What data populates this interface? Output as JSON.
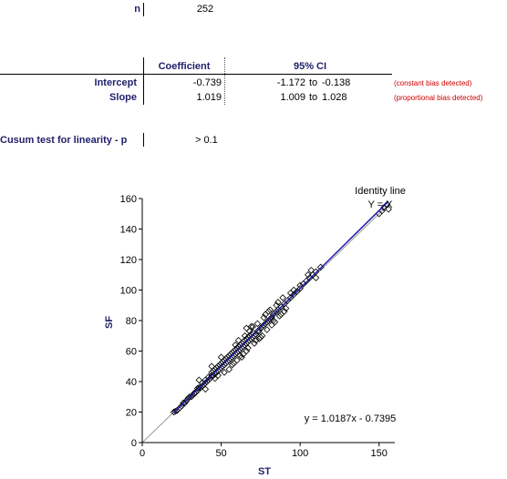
{
  "stats": {
    "n_label": "n",
    "n_value": "252",
    "col_coefficient": "Coefficient",
    "col_ci": "95% CI",
    "rows": [
      {
        "label": "Intercept",
        "coef": "-0.739",
        "ci_low": "-1.172",
        "ci_to": "to",
        "ci_high": "-0.138",
        "note": "(constant bias detected)"
      },
      {
        "label": "Slope",
        "coef": "1.019",
        "ci_low": "1.009",
        "ci_to": "to",
        "ci_high": "1.028",
        "note": "(proportional bias detected)"
      }
    ],
    "cusum_label": "Cusum test for linearity - p",
    "cusum_value": "> 0.1"
  },
  "colors": {
    "label_navy": "#1f1f6b",
    "note_red": "#cc0000",
    "regression_blue": "#1a1aa8",
    "identity_gray": "#9a9a9a"
  },
  "chart_data": {
    "type": "scatter",
    "xlabel": "ST",
    "ylabel": "SF",
    "xlim": [
      0,
      160
    ],
    "ylim": [
      0,
      160
    ],
    "xticks": [
      0,
      50,
      100,
      150
    ],
    "yticks": [
      0,
      20,
      40,
      60,
      80,
      100,
      120,
      140,
      160
    ],
    "grid": false,
    "identity_label": "Identity line",
    "identity_eq": "Y = X",
    "equation": "y = 1.0187x - 0.7395",
    "regression": {
      "slope": 1.0187,
      "intercept": -0.7395
    },
    "points": [
      [
        20,
        20
      ],
      [
        21,
        20.5
      ],
      [
        22,
        21
      ],
      [
        24,
        23
      ],
      [
        25,
        24
      ],
      [
        26,
        26
      ],
      [
        27,
        26
      ],
      [
        28,
        27.5
      ],
      [
        29,
        29
      ],
      [
        30,
        30
      ],
      [
        31,
        30
      ],
      [
        32,
        31
      ],
      [
        33,
        32.5
      ],
      [
        34,
        33
      ],
      [
        35,
        34
      ],
      [
        35,
        35.5
      ],
      [
        36,
        36
      ],
      [
        37,
        36
      ],
      [
        38,
        37
      ],
      [
        38,
        39
      ],
      [
        39,
        38
      ],
      [
        40,
        39
      ],
      [
        40,
        41
      ],
      [
        41,
        40
      ],
      [
        42,
        41
      ],
      [
        42,
        43
      ],
      [
        43,
        42
      ],
      [
        44,
        44
      ],
      [
        44,
        46
      ],
      [
        45,
        44
      ],
      [
        45,
        47
      ],
      [
        46,
        45
      ],
      [
        46,
        48
      ],
      [
        47,
        46
      ],
      [
        47,
        49
      ],
      [
        48,
        47
      ],
      [
        48,
        50
      ],
      [
        49,
        48
      ],
      [
        49,
        51
      ],
      [
        50,
        49
      ],
      [
        50,
        52
      ],
      [
        51,
        50
      ],
      [
        51,
        53
      ],
      [
        52,
        51
      ],
      [
        52,
        54
      ],
      [
        53,
        52
      ],
      [
        53,
        55
      ],
      [
        54,
        53
      ],
      [
        54,
        56
      ],
      [
        55,
        54
      ],
      [
        55,
        57
      ],
      [
        56,
        55
      ],
      [
        56,
        58
      ],
      [
        57,
        56
      ],
      [
        57,
        59
      ],
      [
        58,
        57
      ],
      [
        58,
        60
      ],
      [
        59,
        58
      ],
      [
        59,
        61
      ],
      [
        60,
        59
      ],
      [
        60,
        62
      ],
      [
        61,
        60
      ],
      [
        61,
        63
      ],
      [
        62,
        61
      ],
      [
        62,
        64
      ],
      [
        63,
        62
      ],
      [
        63,
        65
      ],
      [
        64,
        63
      ],
      [
        64,
        66
      ],
      [
        65,
        64
      ],
      [
        65,
        67
      ],
      [
        66,
        65
      ],
      [
        66,
        68
      ],
      [
        67,
        66
      ],
      [
        67,
        69
      ],
      [
        68,
        67
      ],
      [
        68,
        70
      ],
      [
        69,
        68
      ],
      [
        69,
        71
      ],
      [
        70,
        69
      ],
      [
        70,
        72
      ],
      [
        71,
        70
      ],
      [
        72,
        71
      ],
      [
        73,
        73
      ],
      [
        74,
        73
      ],
      [
        75,
        75
      ],
      [
        76,
        76
      ],
      [
        77,
        77
      ],
      [
        78,
        78
      ],
      [
        79,
        79
      ],
      [
        80,
        80
      ],
      [
        81,
        81
      ],
      [
        82,
        82
      ],
      [
        83,
        84
      ],
      [
        84,
        85
      ],
      [
        85,
        86
      ],
      [
        86,
        87
      ],
      [
        88,
        89
      ],
      [
        90,
        91
      ],
      [
        92,
        93
      ],
      [
        94,
        95
      ],
      [
        96,
        97
      ],
      [
        98,
        99
      ],
      [
        100,
        101
      ],
      [
        102,
        104
      ],
      [
        104,
        106
      ],
      [
        106,
        108
      ],
      [
        108,
        110
      ],
      [
        110,
        112
      ],
      [
        113,
        115
      ],
      [
        48,
        44
      ],
      [
        55,
        48
      ],
      [
        58,
        52
      ],
      [
        60,
        54
      ],
      [
        62,
        57
      ],
      [
        64,
        58
      ],
      [
        66,
        60
      ],
      [
        66,
        75
      ],
      [
        68,
        73
      ],
      [
        70,
        76
      ],
      [
        72,
        67
      ],
      [
        74,
        68
      ],
      [
        76,
        70
      ],
      [
        78,
        84
      ],
      [
        80,
        86
      ],
      [
        82,
        77
      ],
      [
        84,
        79
      ],
      [
        86,
        92
      ],
      [
        88,
        84
      ],
      [
        90,
        86
      ],
      [
        94,
        98
      ],
      [
        96,
        100
      ],
      [
        100,
        103
      ],
      [
        105,
        110
      ],
      [
        107,
        113
      ],
      [
        110,
        108
      ],
      [
        36,
        41
      ],
      [
        40,
        35
      ],
      [
        44,
        50
      ],
      [
        46,
        42
      ],
      [
        52,
        46
      ],
      [
        50,
        56
      ],
      [
        57,
        51
      ],
      [
        59,
        64
      ],
      [
        61,
        67
      ],
      [
        63,
        56
      ],
      [
        65,
        70
      ],
      [
        67,
        62
      ],
      [
        69,
        76
      ],
      [
        71,
        65
      ],
      [
        73,
        78
      ],
      [
        75,
        69
      ],
      [
        77,
        82
      ],
      [
        79,
        74
      ],
      [
        81,
        87
      ],
      [
        83,
        80
      ],
      [
        85,
        90
      ],
      [
        87,
        83
      ],
      [
        89,
        95
      ],
      [
        91,
        88
      ],
      [
        150,
        150
      ],
      [
        152,
        152
      ],
      [
        153,
        154
      ],
      [
        155,
        156
      ],
      [
        156,
        153
      ]
    ]
  }
}
